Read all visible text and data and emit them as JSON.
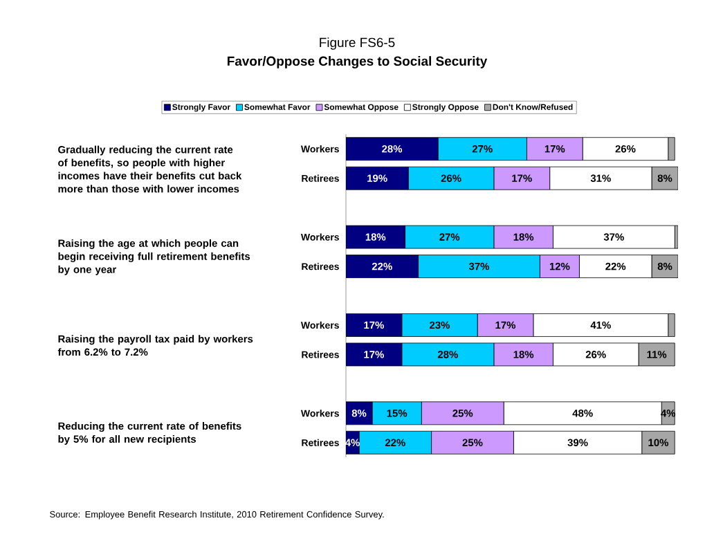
{
  "chart_data": {
    "type": "bar",
    "orientation": "horizontal",
    "stacked": true,
    "title": "Figure FS6-5",
    "subtitle": "Favor/Oppose Changes to Social Security",
    "categories": [
      "Workers",
      "Retirees",
      null,
      "Workers",
      "Retirees",
      null,
      "Workers",
      "Retirees",
      null,
      "Workers",
      "Retirees"
    ],
    "series": [
      {
        "name": "Strongly Favor",
        "color": "#000080",
        "values": [
          28,
          19,
          null,
          18,
          22,
          null,
          17,
          17,
          null,
          8,
          4
        ],
        "value_labels": [
          "28%",
          "19%",
          null,
          "18%",
          "22%",
          null,
          "17%",
          "17%",
          null,
          "8%",
          "4%"
        ]
      },
      {
        "name": "Somewhat Favor",
        "color": "#00ccff",
        "values": [
          27,
          26,
          null,
          27,
          37,
          null,
          23,
          28,
          null,
          15,
          22
        ],
        "value_labels": [
          "27%",
          "26%",
          null,
          "27%",
          "37%",
          null,
          "23%",
          "28%",
          null,
          "15%",
          "22%"
        ]
      },
      {
        "name": "Somewhat Oppose",
        "color": "#cc99ff",
        "values": [
          17,
          17,
          null,
          18,
          12,
          null,
          17,
          18,
          null,
          25,
          25
        ],
        "value_labels": [
          "17%",
          "17%",
          null,
          "18%",
          "12%",
          null,
          "17%",
          "18%",
          null,
          "25%",
          "25%"
        ]
      },
      {
        "name": "Strongly Oppose",
        "color": "#ffffff",
        "values": [
          26,
          31,
          null,
          37,
          22,
          null,
          41,
          26,
          null,
          48,
          39
        ],
        "value_labels": [
          "26%",
          "31%",
          null,
          "37%",
          "22%",
          null,
          "41%",
          "26%",
          null,
          "48%",
          "39%"
        ]
      },
      {
        "name": "Don't Know/Refused",
        "color": "#a6a6a6",
        "values": [
          2,
          8,
          null,
          1,
          8,
          null,
          2,
          11,
          null,
          4,
          10
        ],
        "value_labels": [
          null,
          "8%",
          null,
          null,
          "8%",
          null,
          null,
          "11%",
          null,
          "4%",
          "10%"
        ]
      }
    ],
    "xlim": [
      0,
      101
    ],
    "legend": "top",
    "annotations": [
      "Gradually reducing the current rate of benefits, so people with higher incomes have their benefits cut back more than those with lower incomes",
      "Raising the age at which people can begin receiving full retirement benefits by one year",
      "Raising the payroll tax paid by workers from 6.2% to 7.2%",
      "Reducing the current rate of benefits by 5% for all new recipients",
      "Source:  Employee Benefit Research Institute, 2010 Retirement Confidence Survey."
    ]
  }
}
